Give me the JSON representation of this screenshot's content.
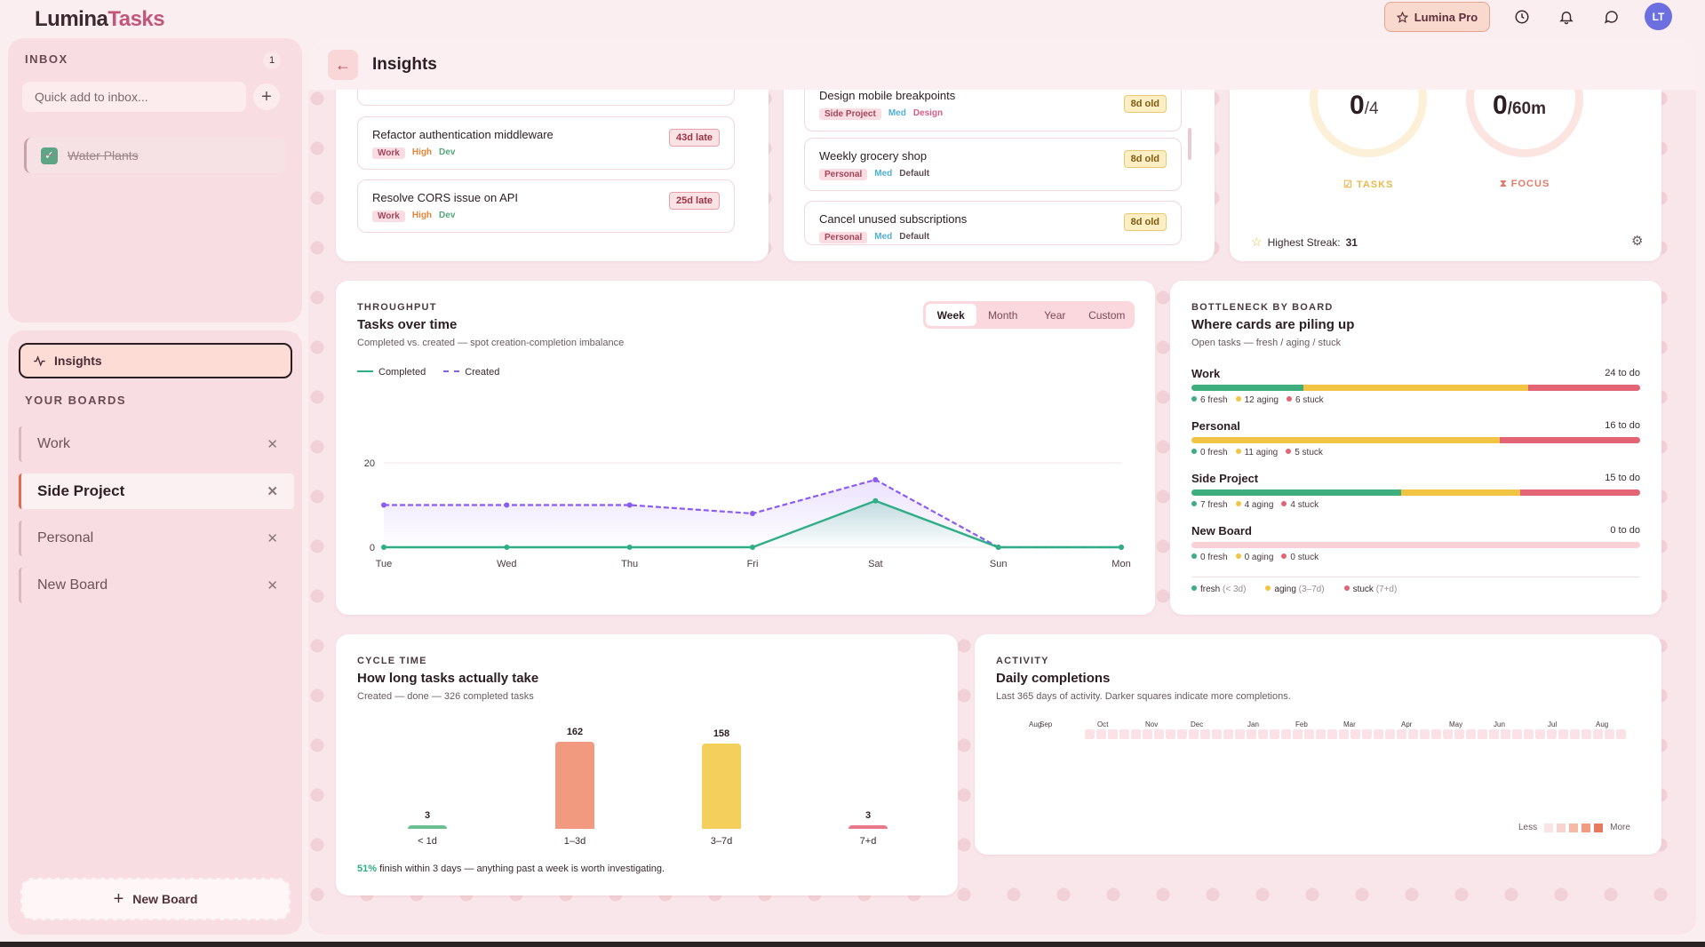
{
  "app": {
    "logo_main": "Lumina",
    "logo_accent": "Tasks",
    "pro_label": "Lumina Pro",
    "avatar_initials": "LT"
  },
  "icons": [
    "star-icon",
    "history-icon",
    "bell-icon",
    "chat-icon",
    "arrow-left-icon",
    "pulse-icon",
    "plus-icon",
    "close-icon",
    "check-icon",
    "settings-icon",
    "hourglass-icon"
  ],
  "inbox": {
    "label": "INBOX",
    "count": "1",
    "placeholder": "Quick add to inbox...",
    "item": "Water Plants"
  },
  "nav": {
    "insights": "Insights",
    "boards_label": "YOUR BOARDS",
    "boards": [
      "Work",
      "Side Project",
      "Personal",
      "New Board"
    ],
    "new_board": "New Board"
  },
  "page": {
    "title": "Insights"
  },
  "overdue": [
    {
      "title": "Refactor authentication middleware",
      "tags": [
        "Work",
        "High",
        "Dev"
      ],
      "badge": "43d late"
    },
    {
      "title": "Resolve CORS issue on API",
      "tags": [
        "Work",
        "High",
        "Dev"
      ],
      "badge": "25d late"
    }
  ],
  "stale": [
    {
      "title": "Design mobile breakpoints",
      "tags": [
        "Side Project",
        "Med",
        "Design"
      ],
      "badge": "8d old"
    },
    {
      "title": "Weekly grocery shop",
      "tags": [
        "Personal",
        "Med",
        "Default"
      ],
      "badge": "8d old"
    },
    {
      "title": "Cancel unused subscriptions",
      "tags": [
        "Personal",
        "Med",
        "Default"
      ],
      "badge": "8d old"
    }
  ],
  "goals": {
    "tasks": {
      "value": "0",
      "total": "/4",
      "label": "TASKS"
    },
    "focus": {
      "value": "0",
      "total": "/60m",
      "label": "FOCUS"
    },
    "streak_label": "Highest Streak:",
    "streak_value": "31"
  },
  "throughput": {
    "eyebrow": "THROUGHPUT",
    "title": "Tasks over time",
    "subtitle": "Completed vs. created — spot creation-completion imbalance",
    "ranges": [
      "Week",
      "Month",
      "Year",
      "Custom"
    ],
    "active_range": "Week"
  },
  "chart_data": {
    "type": "line",
    "x": [
      "Tue",
      "Wed",
      "Thu",
      "Fri",
      "Sat",
      "Sun",
      "Mon"
    ],
    "yticks": [
      0,
      20
    ],
    "ylim": [
      0,
      28
    ],
    "grid": true,
    "legend": "top-left",
    "series": [
      {
        "name": "Completed",
        "color": "#2fae86",
        "values": [
          0,
          0,
          0,
          0,
          11,
          0,
          0
        ]
      },
      {
        "name": "Created",
        "color": "#8b5cf0",
        "values": [
          10,
          10,
          10,
          8,
          16,
          0,
          0
        ]
      }
    ]
  },
  "bottleneck": {
    "eyebrow": "BOTTLENECK BY BOARD",
    "title": "Where cards are piling up",
    "subtitle": "Open tasks — fresh / aging / stuck",
    "boards": [
      {
        "name": "Work",
        "todo": "24 to do",
        "fresh": 6,
        "aging": 12,
        "stuck": 6
      },
      {
        "name": "Personal",
        "todo": "16 to do",
        "fresh": 0,
        "aging": 11,
        "stuck": 5
      },
      {
        "name": "Side Project",
        "todo": "15 to do",
        "fresh": 7,
        "aging": 4,
        "stuck": 4
      },
      {
        "name": "New Board",
        "todo": "0 to do",
        "fresh": 0,
        "aging": 0,
        "stuck": 0
      }
    ],
    "legend": [
      {
        "label": "fresh",
        "range": "(< 3d)"
      },
      {
        "label": "aging",
        "range": "(3–7d)"
      },
      {
        "label": "stuck",
        "range": "(7+d)"
      }
    ],
    "colors": {
      "fresh": "#3fae7e",
      "aging": "#f2c444",
      "stuck": "#e26475"
    }
  },
  "cycle": {
    "eyebrow": "CYCLE TIME",
    "title": "How long tasks actually take",
    "subtitle": "Created — done — 326 completed tasks",
    "bars": [
      {
        "label": "< 1d",
        "value": 3,
        "color": "#6cbf92"
      },
      {
        "label": "1–3d",
        "value": 162,
        "color": "#f29a80"
      },
      {
        "label": "3–7d",
        "value": 158,
        "color": "#f4cf5c"
      },
      {
        "label": "7+d",
        "value": 3,
        "color": "#e8788a"
      }
    ],
    "footer_pct": "51%",
    "footer_text": "finish within 3 days — anything past a week is worth investigating."
  },
  "activity": {
    "eyebrow": "ACTIVITY",
    "title": "Daily completions",
    "subtitle": "Last 365 days of activity. Darker squares indicate more completions.",
    "months": [
      "Aug",
      "Sep",
      "Oct",
      "Nov",
      "Dec",
      "Jan",
      "Feb",
      "Mar",
      "Apr",
      "May",
      "Jun",
      "Jul",
      "Aug"
    ],
    "less": "Less",
    "more": "More"
  }
}
